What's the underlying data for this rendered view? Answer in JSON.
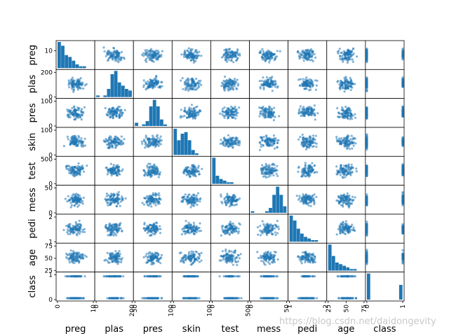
{
  "chart_data": {
    "type": "scatter",
    "kind": "scatter_matrix",
    "diagonal": "hist",
    "marker_color": "#1f77b4",
    "variables": [
      {
        "name": "preg",
        "ticks": [
          0,
          10
        ],
        "ytick_labels": [
          "10"
        ],
        "hist": [
          14,
          12,
          7,
          6,
          4,
          2,
          1,
          1,
          0,
          0
        ]
      },
      {
        "name": "plas",
        "ticks": [
          0,
          200
        ],
        "ytick_labels": [
          "0",
          "200"
        ],
        "hist": [
          1,
          0,
          1,
          5,
          14,
          16,
          9,
          7,
          5,
          4
        ]
      },
      {
        "name": "pres",
        "ticks": [
          0,
          100
        ],
        "ytick_labels": [
          "0",
          "100"
        ],
        "hist": [
          2,
          0,
          1,
          3,
          12,
          16,
          12,
          4,
          1,
          0
        ]
      },
      {
        "name": "skin",
        "ticks": [
          0,
          100
        ],
        "ytick_labels": [
          "0",
          "100"
        ],
        "hist": [
          16,
          9,
          13,
          14,
          9,
          3,
          1,
          0,
          0,
          0
        ]
      },
      {
        "name": "test",
        "ticks": [
          0,
          500
        ],
        "ytick_labels": [
          "0",
          "500"
        ],
        "hist": [
          16,
          5,
          3,
          2,
          1,
          1,
          0,
          0,
          0,
          0
        ]
      },
      {
        "name": "mess",
        "ticks": [
          0,
          50
        ],
        "ytick_labels": [
          "0",
          "50"
        ],
        "hist": [
          1,
          0,
          0,
          0,
          1,
          3,
          11,
          16,
          11,
          4
        ]
      },
      {
        "name": "pedi",
        "ticks": [
          1,
          2
        ],
        "ytick_labels": [
          "1",
          "2"
        ],
        "hist": [
          16,
          13,
          8,
          5,
          3,
          2,
          1,
          1,
          0,
          0
        ]
      },
      {
        "name": "age",
        "ticks": [
          25,
          50,
          75
        ],
        "ytick_labels": [
          "25",
          "50",
          "75"
        ],
        "hist": [
          16,
          9,
          5,
          4,
          3,
          2,
          1,
          1,
          0,
          0
        ]
      },
      {
        "name": "class",
        "ticks": [
          0,
          1
        ],
        "ytick_labels": [
          "0",
          "1"
        ],
        "hist": [
          16,
          0,
          0,
          0,
          0,
          0,
          0,
          0,
          0,
          9
        ]
      }
    ],
    "xtick_labels": [
      [
        "0",
        "10"
      ],
      [
        "0",
        "200"
      ],
      [
        "50",
        "100"
      ],
      [
        "0",
        "100"
      ],
      [
        "0",
        "500"
      ],
      [
        "0",
        "50"
      ],
      [
        "1",
        "2"
      ],
      [
        "25",
        "50",
        "75"
      ],
      [
        "0",
        "1"
      ]
    ]
  },
  "watermark": "https://blog.csdn.net/daidongevity"
}
